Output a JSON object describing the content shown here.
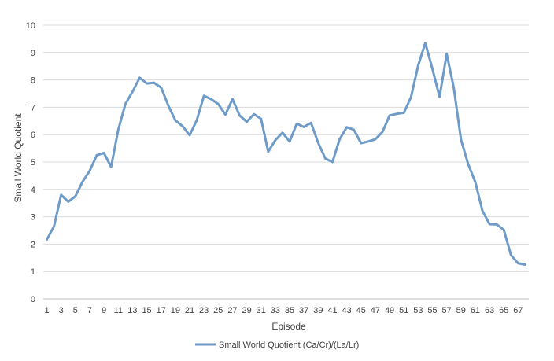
{
  "chart_data": {
    "type": "line",
    "title": "",
    "xlabel": "Episode",
    "ylabel": "Small World Quotient",
    "ylim": [
      0,
      10
    ],
    "yticks": [
      "0",
      "1",
      "2",
      "3",
      "4",
      "5",
      "6",
      "7",
      "8",
      "9",
      "10"
    ],
    "xticks": [
      "1",
      "3",
      "5",
      "7",
      "9",
      "11",
      "13",
      "15",
      "17",
      "19",
      "21",
      "23",
      "25",
      "27",
      "29",
      "31",
      "33",
      "35",
      "37",
      "39",
      "41",
      "43",
      "45",
      "47",
      "49",
      "51",
      "53",
      "55",
      "57",
      "59",
      "61",
      "63",
      "65",
      "67"
    ],
    "grid": "horizontal",
    "legend_position": "bottom",
    "colors": {
      "series": "#6f9bc8",
      "grid": "#d9d9d9",
      "axis": "#bfbfbf"
    },
    "series": [
      {
        "name": "Small World Quotient (Ca/Cr)/(La/Lr)",
        "x": [
          1,
          2,
          3,
          4,
          5,
          6,
          7,
          8,
          9,
          10,
          11,
          12,
          13,
          14,
          15,
          16,
          17,
          18,
          19,
          20,
          21,
          22,
          23,
          24,
          25,
          26,
          27,
          28,
          29,
          30,
          31,
          32,
          33,
          34,
          35,
          36,
          37,
          38,
          39,
          40,
          41,
          42,
          43,
          44,
          45,
          46,
          47,
          48,
          49,
          50,
          51,
          52,
          53,
          54,
          55,
          56,
          57,
          58,
          59,
          60,
          61,
          62,
          63,
          64,
          65,
          66,
          67,
          68
        ],
        "values": [
          2.17,
          2.65,
          3.8,
          3.55,
          3.75,
          4.28,
          4.68,
          5.25,
          5.33,
          4.82,
          6.18,
          7.12,
          7.57,
          8.08,
          7.87,
          7.9,
          7.72,
          7.07,
          6.52,
          6.31,
          5.98,
          6.53,
          7.42,
          7.3,
          7.12,
          6.73,
          7.3,
          6.7,
          6.47,
          6.75,
          6.58,
          5.38,
          5.8,
          6.07,
          5.75,
          6.4,
          6.28,
          6.43,
          5.7,
          5.13,
          5.0,
          5.83,
          6.27,
          6.18,
          5.69,
          5.75,
          5.83,
          6.1,
          6.7,
          6.76,
          6.8,
          7.37,
          8.52,
          9.35,
          8.4,
          7.38,
          8.95,
          7.7,
          5.82,
          4.93,
          4.27,
          3.22,
          2.73,
          2.72,
          2.52,
          1.6,
          1.3,
          1.25
        ]
      }
    ]
  }
}
